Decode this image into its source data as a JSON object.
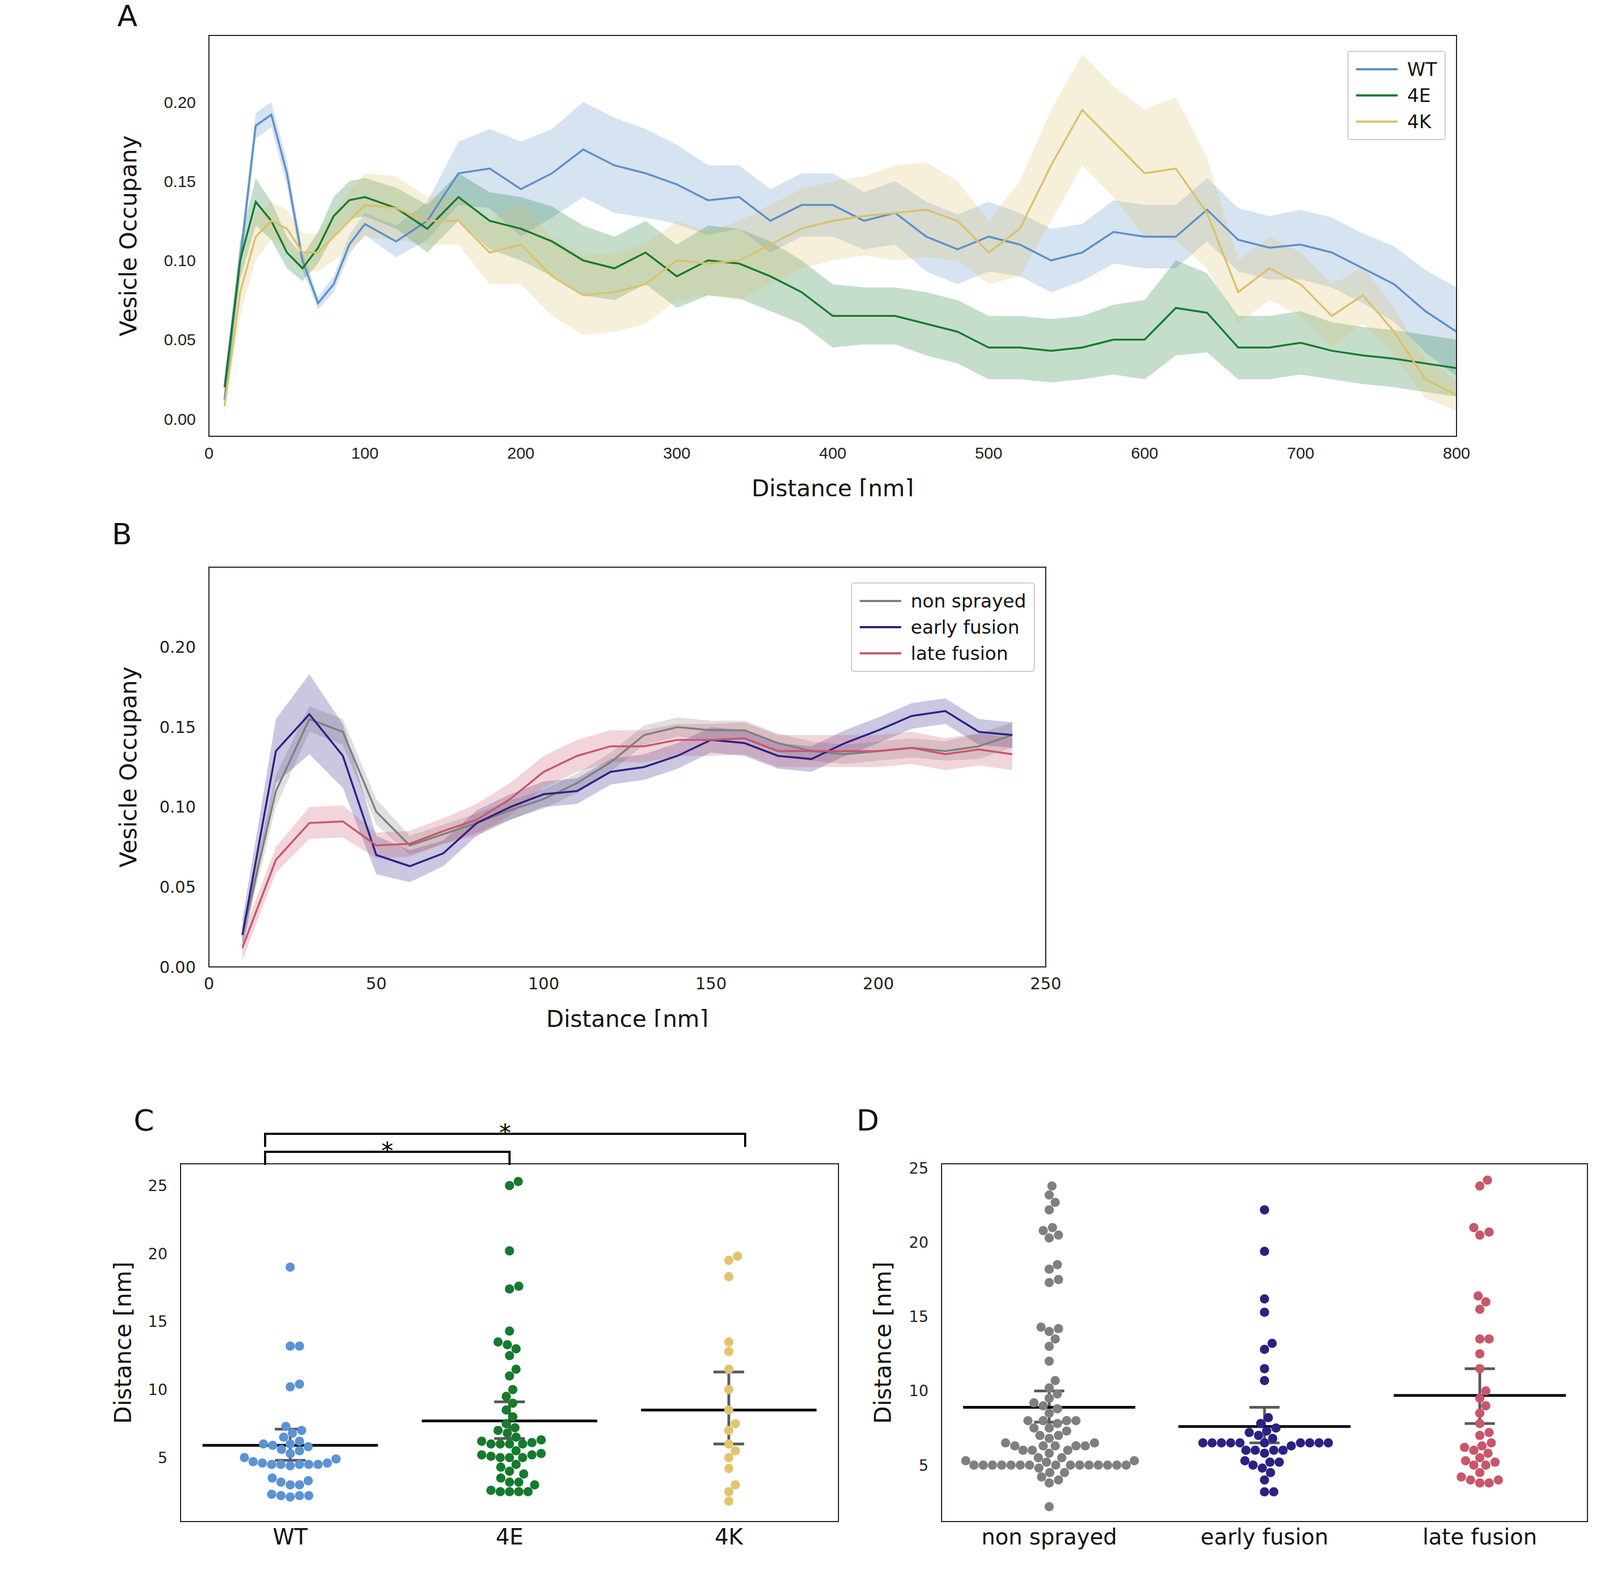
{
  "chart_data": [
    {
      "panel": "A",
      "type": "line",
      "xlabel": "Distance [nm]",
      "ylabel": "Vesicle Occupany",
      "legend": "upper right",
      "x": [
        10,
        20,
        30,
        40,
        50,
        60,
        70,
        80,
        90,
        100,
        120,
        140,
        160,
        180,
        200,
        220,
        240,
        260,
        280,
        300,
        320,
        340,
        360,
        380,
        400,
        420,
        440,
        460,
        480,
        500,
        520,
        540,
        560,
        580,
        600,
        620,
        640,
        660,
        680,
        700,
        720,
        740,
        760,
        780,
        800
      ],
      "xlim": [
        0,
        800
      ],
      "xticks": [
        0,
        100,
        200,
        300,
        400,
        500,
        600,
        700,
        800
      ],
      "ylim": [
        -0.011,
        0.242
      ],
      "yticks": [
        {
          "value": 0,
          "label": "0.00"
        },
        {
          "value": 0.05,
          "label": "0.05"
        },
        {
          "value": 0.1,
          "label": "0.10"
        },
        {
          "value": 0.15,
          "label": "0.15"
        },
        {
          "value": 0.2,
          "label": "0.20"
        }
      ],
      "series": [
        {
          "name": "WT",
          "color": "#5b8fc9",
          "values": [
            0.012,
            0.1,
            0.185,
            0.192,
            0.155,
            0.1,
            0.073,
            0.085,
            0.11,
            0.123,
            0.112,
            0.125,
            0.155,
            0.158,
            0.145,
            0.155,
            0.17,
            0.16,
            0.155,
            0.148,
            0.138,
            0.14,
            0.125,
            0.135,
            0.135,
            0.125,
            0.13,
            0.115,
            0.107,
            0.115,
            0.11,
            0.1,
            0.105,
            0.118,
            0.115,
            0.115,
            0.132,
            0.113,
            0.108,
            0.11,
            0.105,
            0.095,
            0.085,
            0.068,
            0.055
          ],
          "error": [
            0.004,
            0.01,
            0.008,
            0.008,
            0.008,
            0.006,
            0.004,
            0.005,
            0.006,
            0.007,
            0.01,
            0.012,
            0.02,
            0.025,
            0.03,
            0.028,
            0.03,
            0.03,
            0.028,
            0.025,
            0.022,
            0.02,
            0.02,
            0.02,
            0.02,
            0.018,
            0.02,
            0.022,
            0.022,
            0.022,
            0.02,
            0.02,
            0.018,
            0.02,
            0.02,
            0.02,
            0.02,
            0.02,
            0.02,
            0.022,
            0.022,
            0.022,
            0.024,
            0.026,
            0.028
          ]
        },
        {
          "name": "4E",
          "color": "#157a2e",
          "values": [
            0.02,
            0.1,
            0.137,
            0.125,
            0.105,
            0.095,
            0.108,
            0.128,
            0.138,
            0.14,
            0.133,
            0.12,
            0.14,
            0.125,
            0.12,
            0.112,
            0.1,
            0.095,
            0.105,
            0.09,
            0.1,
            0.098,
            0.09,
            0.08,
            0.065,
            0.065,
            0.065,
            0.06,
            0.055,
            0.045,
            0.045,
            0.043,
            0.045,
            0.05,
            0.05,
            0.07,
            0.067,
            0.045,
            0.045,
            0.048,
            0.043,
            0.04,
            0.038,
            0.035,
            0.032
          ],
          "error": [
            0.006,
            0.012,
            0.015,
            0.012,
            0.01,
            0.008,
            0.01,
            0.012,
            0.012,
            0.012,
            0.013,
            0.015,
            0.015,
            0.018,
            0.02,
            0.022,
            0.022,
            0.02,
            0.02,
            0.02,
            0.022,
            0.022,
            0.022,
            0.02,
            0.02,
            0.018,
            0.018,
            0.02,
            0.02,
            0.02,
            0.02,
            0.02,
            0.02,
            0.022,
            0.025,
            0.03,
            0.025,
            0.02,
            0.02,
            0.02,
            0.018,
            0.018,
            0.018,
            0.018,
            0.018
          ]
        },
        {
          "name": "4K",
          "color": "#dcc06a",
          "values": [
            0.008,
            0.08,
            0.115,
            0.125,
            0.12,
            0.105,
            0.105,
            0.115,
            0.125,
            0.135,
            0.133,
            0.125,
            0.125,
            0.105,
            0.11,
            0.09,
            0.078,
            0.08,
            0.085,
            0.1,
            0.098,
            0.1,
            0.11,
            0.12,
            0.125,
            0.128,
            0.13,
            0.132,
            0.125,
            0.105,
            0.12,
            0.16,
            0.195,
            0.175,
            0.155,
            0.158,
            0.13,
            0.08,
            0.095,
            0.085,
            0.065,
            0.078,
            0.055,
            0.025,
            0.015
          ],
          "error": [
            0.005,
            0.015,
            0.015,
            0.012,
            0.012,
            0.012,
            0.012,
            0.015,
            0.018,
            0.02,
            0.02,
            0.015,
            0.015,
            0.02,
            0.025,
            0.025,
            0.025,
            0.025,
            0.025,
            0.025,
            0.02,
            0.025,
            0.025,
            0.025,
            0.025,
            0.025,
            0.03,
            0.03,
            0.025,
            0.02,
            0.03,
            0.035,
            0.035,
            0.035,
            0.04,
            0.045,
            0.035,
            0.02,
            0.02,
            0.02,
            0.02,
            0.018,
            0.015,
            0.012,
            0.01
          ]
        }
      ]
    },
    {
      "panel": "B",
      "type": "line",
      "xlabel": "Distance [nm]",
      "ylabel": "Vesicle Occupany",
      "legend": "upper right",
      "x": [
        10,
        20,
        30,
        40,
        50,
        60,
        70,
        80,
        90,
        100,
        110,
        120,
        130,
        140,
        150,
        160,
        170,
        180,
        190,
        200,
        210,
        220,
        230,
        240
      ],
      "xlim": [
        0,
        250
      ],
      "xticks": [
        0,
        50,
        100,
        150,
        200,
        250
      ],
      "ylim": [
        0,
        0.25
      ],
      "yticks": [
        {
          "value": 0,
          "label": "0.00"
        },
        {
          "value": 0.05,
          "label": "0.05"
        },
        {
          "value": 0.1,
          "label": "0.10"
        },
        {
          "value": 0.15,
          "label": "0.15"
        },
        {
          "value": 0.2,
          "label": "0.20"
        }
      ],
      "series": [
        {
          "name": "non sprayed",
          "color": "#7f7f7f",
          "values": [
            0.02,
            0.11,
            0.155,
            0.147,
            0.097,
            0.076,
            0.083,
            0.09,
            0.098,
            0.105,
            0.115,
            0.128,
            0.145,
            0.15,
            0.148,
            0.148,
            0.14,
            0.135,
            0.133,
            0.135,
            0.137,
            0.135,
            0.138,
            0.145
          ],
          "error": [
            0.005,
            0.01,
            0.008,
            0.008,
            0.008,
            0.006,
            0.006,
            0.006,
            0.006,
            0.006,
            0.006,
            0.006,
            0.006,
            0.006,
            0.006,
            0.006,
            0.006,
            0.006,
            0.006,
            0.006,
            0.006,
            0.006,
            0.008,
            0.008
          ]
        },
        {
          "name": "early fusion",
          "color": "#2b2183",
          "values": [
            0.02,
            0.135,
            0.158,
            0.132,
            0.07,
            0.063,
            0.071,
            0.09,
            0.1,
            0.108,
            0.11,
            0.122,
            0.125,
            0.132,
            0.142,
            0.14,
            0.132,
            0.13,
            0.14,
            0.148,
            0.157,
            0.16,
            0.147,
            0.145
          ],
          "error": [
            0.01,
            0.02,
            0.025,
            0.02,
            0.012,
            0.01,
            0.008,
            0.008,
            0.008,
            0.008,
            0.008,
            0.008,
            0.008,
            0.008,
            0.008,
            0.008,
            0.008,
            0.008,
            0.008,
            0.008,
            0.008,
            0.008,
            0.008,
            0.008
          ]
        },
        {
          "name": "late fusion",
          "color": "#c9566a",
          "values": [
            0.012,
            0.067,
            0.09,
            0.091,
            0.076,
            0.077,
            0.085,
            0.092,
            0.105,
            0.122,
            0.132,
            0.138,
            0.138,
            0.142,
            0.142,
            0.143,
            0.135,
            0.135,
            0.135,
            0.135,
            0.137,
            0.133,
            0.136,
            0.133
          ],
          "error": [
            0.008,
            0.008,
            0.01,
            0.01,
            0.008,
            0.008,
            0.008,
            0.01,
            0.01,
            0.01,
            0.01,
            0.01,
            0.01,
            0.01,
            0.01,
            0.01,
            0.01,
            0.01,
            0.01,
            0.01,
            0.01,
            0.01,
            0.01,
            0.01
          ]
        }
      ]
    },
    {
      "panel": "C",
      "type": "swarm",
      "ylabel": "Distance [nm]",
      "categories": [
        "WT",
        "4E",
        "4K"
      ],
      "ylim": [
        0.3,
        26.6
      ],
      "yticks": [
        5,
        10,
        15,
        20,
        25
      ],
      "groups": [
        {
          "color": "#5b93d3",
          "mean": 5.9,
          "ci": [
            4.8,
            7.1
          ],
          "values": [
            19,
            13.2,
            13.2,
            10.4,
            10.2,
            7.3,
            7,
            6.8,
            6.5,
            6.2,
            6,
            6,
            5.9,
            5.8,
            5.6,
            5.5,
            5.3,
            5,
            4.9,
            4.7,
            4.6,
            4.6,
            4.5,
            4.5,
            4.5,
            4.5,
            4.5,
            4.4,
            3.5,
            3.3,
            3.2,
            3,
            3,
            2.3,
            2.2,
            2.2,
            2.2,
            2.1
          ]
        },
        {
          "color": "#157a2e",
          "mean": 7.7,
          "ci": [
            6.4,
            9.1
          ],
          "values": [
            25.3,
            25,
            20.2,
            17.6,
            17.4,
            14.3,
            13.5,
            13.3,
            13,
            12.5,
            11.5,
            11,
            10,
            9.5,
            9,
            8.5,
            8,
            7.5,
            7.2,
            7,
            6.8,
            6.5,
            6.3,
            6.2,
            6.1,
            6,
            6,
            6,
            6,
            5.5,
            5.3,
            5.2,
            5.2,
            5.1,
            5,
            5,
            5,
            4.5,
            4.3,
            4,
            3.8,
            3.5,
            3.2,
            3.2,
            3,
            2.6,
            2.5,
            2.5,
            2.5,
            2.5
          ]
        },
        {
          "color": "#e0c56e",
          "mean": 8.5,
          "ci": [
            6.0,
            11.3
          ],
          "values": [
            19.8,
            19.5,
            18.3,
            13.5,
            12.8,
            11.5,
            10,
            8.5,
            7.5,
            7,
            6,
            5.5,
            5,
            4.2,
            3,
            2.5,
            1.8
          ]
        }
      ],
      "annotations": [
        {
          "from": "WT",
          "to": "4E",
          "text": "*"
        },
        {
          "from": "WT",
          "to": "4K",
          "text": "*"
        }
      ]
    },
    {
      "panel": "D",
      "type": "swarm",
      "ylabel": "Distance [nm]",
      "categories": [
        "non sprayed",
        "early fusion",
        "late fusion"
      ],
      "ylim": [
        1.2,
        25.3
      ],
      "yticks": [
        5,
        10,
        15,
        20,
        25
      ],
      "groups": [
        {
          "color": "#7f7f7f",
          "mean": 8.9,
          "ci": [
            7.9,
            10
          ],
          "values": [
            23.8,
            23.2,
            22.7,
            22.2,
            21,
            20.8,
            20.5,
            20.3,
            18.5,
            18.2,
            17.5,
            17.3,
            14.3,
            14.2,
            14,
            13.5,
            13,
            12,
            10.7,
            10.2,
            9.8,
            9.5,
            9.2,
            9,
            8.8,
            8.5,
            8,
            8,
            8,
            8,
            7.8,
            7.5,
            7.5,
            7.3,
            7,
            7,
            6.8,
            6.5,
            6.5,
            6.3,
            6.3,
            6.3,
            6.3,
            6.3,
            6,
            6,
            6,
            5.8,
            5.5,
            5.5,
            5.3,
            5.3,
            5.2,
            5,
            5,
            5,
            5,
            5,
            5,
            5,
            5,
            5,
            5,
            5,
            5,
            5,
            5,
            5,
            4.8,
            4.5,
            4.5,
            4.2,
            4,
            3.8,
            2.2
          ]
        },
        {
          "color": "#2b2183",
          "mean": 7.6,
          "ci": [
            6.5,
            8.9
          ],
          "values": [
            22.2,
            19.4,
            16.2,
            15.3,
            13.2,
            12.8,
            11.5,
            10.7,
            8.2,
            7.8,
            7.5,
            7.3,
            7.2,
            7,
            6.8,
            6.5,
            6.5,
            6.5,
            6.5,
            6.5,
            6.5,
            6.5,
            6.5,
            6.5,
            6.5,
            6.3,
            6,
            6,
            6,
            6,
            5.8,
            5.3,
            5.2,
            5.2,
            5,
            4.8,
            4.5,
            4,
            3.2,
            3.2
          ]
        },
        {
          "color": "#c9566a",
          "mean": 9.7,
          "ci": [
            7.8,
            11.5
          ],
          "values": [
            24.2,
            23.8,
            21,
            20.7,
            20.5,
            16.4,
            16,
            15.5,
            13.5,
            13.5,
            12.5,
            11.5,
            10,
            9.5,
            9,
            8.5,
            7.8,
            7.2,
            7,
            6.5,
            6.3,
            6.2,
            6,
            5.8,
            5.5,
            5.3,
            5.2,
            5,
            5,
            4.5,
            4.2,
            4,
            4,
            3.8,
            3.8
          ]
        }
      ]
    }
  ]
}
